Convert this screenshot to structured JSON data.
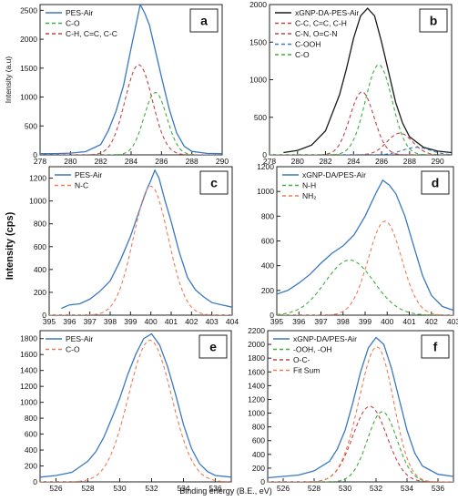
{
  "figure": {
    "shared_ylabel": "Intensity (cps)",
    "shared_xlabel": "Binding energy (B.E., eV)"
  },
  "chart_data": [
    {
      "panel": "a",
      "type": "line",
      "ylabel": "Intensity (a.u)",
      "xlabel": "",
      "xlim": [
        278,
        290
      ],
      "ylim": [
        0,
        2600
      ],
      "xticks": [
        278,
        280,
        282,
        284,
        286,
        288,
        290
      ],
      "yticks": [
        0,
        500,
        1000,
        1500,
        2000,
        2500
      ],
      "legend": "top-left",
      "series": [
        {
          "name": "PES-Air",
          "color": "#3a78c2",
          "style": "solid",
          "kind": "data",
          "points": [
            [
              278,
              20
            ],
            [
              279,
              22
            ],
            [
              280,
              30
            ],
            [
              281,
              55
            ],
            [
              282,
              180
            ],
            [
              282.5,
              420
            ],
            [
              283,
              750
            ],
            [
              283.5,
              1200
            ],
            [
              284,
              1850
            ],
            [
              284.4,
              2350
            ],
            [
              284.6,
              2600
            ],
            [
              284.9,
              2450
            ],
            [
              285.2,
              2250
            ],
            [
              285.6,
              1800
            ],
            [
              286,
              1350
            ],
            [
              286.5,
              800
            ],
            [
              287,
              380
            ],
            [
              287.5,
              150
            ],
            [
              288,
              60
            ],
            [
              289,
              25
            ],
            [
              290,
              20
            ]
          ]
        },
        {
          "name": "C-O",
          "color": "#3fae3f",
          "style": "dash",
          "kind": "peak",
          "center": 285.6,
          "amplitude": 1080,
          "sigma": 0.75
        },
        {
          "name": "C-H, C=C, C-C",
          "color": "#c04545",
          "style": "dash",
          "kind": "peak",
          "center": 284.5,
          "amplitude": 1560,
          "sigma": 0.9
        }
      ]
    },
    {
      "panel": "b",
      "type": "line",
      "ylabel": "",
      "xlabel": "",
      "xlim": [
        278,
        291
      ],
      "ylim": [
        0,
        2000
      ],
      "xticks": [
        278,
        280,
        282,
        284,
        286,
        288,
        290
      ],
      "yticks": [
        0,
        500,
        1000,
        1500,
        2000
      ],
      "legend": "top-left",
      "series": [
        {
          "name": "xGNP-DA-PES-Air",
          "color": "#1a1a1a",
          "style": "solid",
          "kind": "data",
          "points": [
            [
              279,
              30
            ],
            [
              280,
              60
            ],
            [
              281,
              130
            ],
            [
              282,
              320
            ],
            [
              283,
              800
            ],
            [
              283.5,
              1150
            ],
            [
              284,
              1550
            ],
            [
              284.5,
              1850
            ],
            [
              285,
              1950
            ],
            [
              285.5,
              1850
            ],
            [
              286,
              1500
            ],
            [
              286.5,
              1100
            ],
            [
              287,
              700
            ],
            [
              287.5,
              420
            ],
            [
              288,
              240
            ],
            [
              289,
              100
            ],
            [
              290,
              50
            ],
            [
              291,
              30
            ]
          ]
        },
        {
          "name": "C-C, C=C, C-H",
          "color": "#c04545",
          "style": "dash",
          "kind": "peak",
          "center": 284.6,
          "amplitude": 840,
          "sigma": 0.85
        },
        {
          "name": "C-N, O=C-N",
          "color": "#c04545",
          "style": "dash",
          "kind": "peak",
          "center": 287.3,
          "amplitude": 290,
          "sigma": 0.9
        },
        {
          "name": "C-OOH",
          "color": "#3a78c2",
          "style": "dash",
          "kind": "peak",
          "center": 288.5,
          "amplitude": 100,
          "sigma": 1.0
        },
        {
          "name": "C-O",
          "color": "#3fae3f",
          "style": "dash",
          "kind": "peak",
          "center": 285.8,
          "amplitude": 1200,
          "sigma": 0.95
        }
      ]
    },
    {
      "panel": "c",
      "type": "line",
      "ylabel": "",
      "xlabel": "",
      "xlim": [
        395,
        404
      ],
      "ylim": [
        0,
        1300
      ],
      "xticks": [
        395,
        396,
        397,
        398,
        399,
        400,
        401,
        402,
        403,
        404
      ],
      "yticks": [
        0,
        200,
        400,
        600,
        800,
        1000,
        1200
      ],
      "legend": "top-left",
      "series": [
        {
          "name": "PES-Air",
          "color": "#3a78c2",
          "style": "solid",
          "kind": "data",
          "points": [
            [
              395.6,
              60
            ],
            [
              396,
              90
            ],
            [
              396.5,
              100
            ],
            [
              397,
              140
            ],
            [
              397.5,
              210
            ],
            [
              398,
              300
            ],
            [
              398.5,
              480
            ],
            [
              399,
              690
            ],
            [
              399.5,
              950
            ],
            [
              399.8,
              1100
            ],
            [
              400,
              1180
            ],
            [
              400.2,
              1270
            ],
            [
              400.4,
              1200
            ],
            [
              400.7,
              1000
            ],
            [
              401,
              820
            ],
            [
              401.4,
              550
            ],
            [
              401.8,
              330
            ],
            [
              402.2,
              220
            ],
            [
              402.6,
              160
            ],
            [
              403,
              110
            ],
            [
              403.5,
              90
            ],
            [
              404,
              70
            ]
          ]
        },
        {
          "name": "N-C",
          "color": "#ef7a52",
          "style": "dash",
          "kind": "peak",
          "center": 400.0,
          "amplitude": 1130,
          "sigma": 0.85
        }
      ]
    },
    {
      "panel": "d",
      "type": "line",
      "ylabel": "",
      "xlabel": "",
      "xlim": [
        395,
        403
      ],
      "ylim": [
        0,
        1200
      ],
      "xticks": [
        395,
        396,
        397,
        398,
        399,
        400,
        401,
        402,
        403
      ],
      "yticks": [
        0,
        200,
        400,
        600,
        800,
        1000,
        1200
      ],
      "legend": "top-left",
      "series": [
        {
          "name": "xGNP-DA/PES-Air",
          "color": "#3a78c2",
          "style": "solid",
          "kind": "data",
          "points": [
            [
              395,
              170
            ],
            [
              395.5,
              200
            ],
            [
              396,
              260
            ],
            [
              396.5,
              330
            ],
            [
              397,
              420
            ],
            [
              397.5,
              500
            ],
            [
              398,
              560
            ],
            [
              398.5,
              650
            ],
            [
              399,
              800
            ],
            [
              399.5,
              990
            ],
            [
              399.8,
              1090
            ],
            [
              400.1,
              1050
            ],
            [
              400.4,
              980
            ],
            [
              400.8,
              800
            ],
            [
              401.2,
              560
            ],
            [
              401.6,
              320
            ],
            [
              402,
              160
            ],
            [
              402.5,
              70
            ],
            [
              403,
              40
            ]
          ]
        },
        {
          "name": "N-H",
          "color": "#3fae3f",
          "style": "dash",
          "kind": "peak",
          "center": 398.3,
          "amplitude": 445,
          "sigma": 1.1
        },
        {
          "name": "NH₂",
          "color": "#ef7a52",
          "style": "dash",
          "kind": "peak",
          "center": 399.9,
          "amplitude": 760,
          "sigma": 0.75
        }
      ]
    },
    {
      "panel": "e",
      "type": "line",
      "ylabel": "",
      "xlabel": "",
      "xlim": [
        525,
        537
      ],
      "ylim": [
        0,
        1900
      ],
      "xticks": [
        526,
        528,
        530,
        532,
        534,
        536
      ],
      "yticks": [
        0,
        200,
        400,
        600,
        800,
        1000,
        1200,
        1400,
        1600,
        1800
      ],
      "legend": "top-left",
      "series": [
        {
          "name": "PES-Air",
          "color": "#3a78c2",
          "style": "solid",
          "kind": "data",
          "points": [
            [
              525,
              60
            ],
            [
              526,
              80
            ],
            [
              527,
              120
            ],
            [
              527.5,
              190
            ],
            [
              528,
              260
            ],
            [
              528.5,
              380
            ],
            [
              529,
              560
            ],
            [
              529.5,
              800
            ],
            [
              530,
              1050
            ],
            [
              530.5,
              1350
            ],
            [
              531,
              1600
            ],
            [
              531.5,
              1800
            ],
            [
              532,
              1860
            ],
            [
              532.5,
              1720
            ],
            [
              533,
              1450
            ],
            [
              533.5,
              1100
            ],
            [
              534,
              720
            ],
            [
              534.5,
              420
            ],
            [
              535,
              230
            ],
            [
              535.5,
              130
            ],
            [
              536,
              80
            ],
            [
              537,
              60
            ]
          ]
        },
        {
          "name": "C-O",
          "color": "#ef7a52",
          "style": "dash",
          "kind": "peak",
          "center": 531.9,
          "amplitude": 1780,
          "sigma": 1.35
        }
      ]
    },
    {
      "panel": "f",
      "type": "line",
      "ylabel": "",
      "xlabel": "",
      "xlim": [
        525,
        537
      ],
      "ylim": [
        0,
        2200
      ],
      "xticks": [
        526,
        528,
        530,
        532,
        534,
        536
      ],
      "yticks": [
        0,
        200,
        400,
        600,
        800,
        1000,
        1200,
        1400,
        1600,
        1800,
        2000,
        2200
      ],
      "legend": "top-left",
      "series": [
        {
          "name": "xGNP-DA/PES-Air",
          "color": "#3a78c2",
          "style": "solid",
          "kind": "data",
          "points": [
            [
              525,
              60
            ],
            [
              526,
              80
            ],
            [
              527,
              100
            ],
            [
              528,
              160
            ],
            [
              529,
              300
            ],
            [
              529.5,
              480
            ],
            [
              530,
              750
            ],
            [
              530.5,
              1150
            ],
            [
              531,
              1600
            ],
            [
              531.5,
              1950
            ],
            [
              532,
              2100
            ],
            [
              532.5,
              2000
            ],
            [
              533,
              1650
            ],
            [
              533.5,
              1200
            ],
            [
              534,
              750
            ],
            [
              534.5,
              420
            ],
            [
              535,
              230
            ],
            [
              536,
              110
            ],
            [
              537,
              80
            ]
          ]
        },
        {
          "name": "-OOH, -OH",
          "color": "#3fae3f",
          "style": "dash",
          "kind": "peak",
          "center": 532.4,
          "amplitude": 1020,
          "sigma": 0.95
        },
        {
          "name": "O-C-",
          "color": "#c04545",
          "style": "dash",
          "kind": "peak",
          "center": 531.6,
          "amplitude": 1100,
          "sigma": 1.1
        },
        {
          "name": "Fit Sum",
          "color": "#ef7a52",
          "style": "dash",
          "kind": "sum"
        }
      ]
    }
  ]
}
